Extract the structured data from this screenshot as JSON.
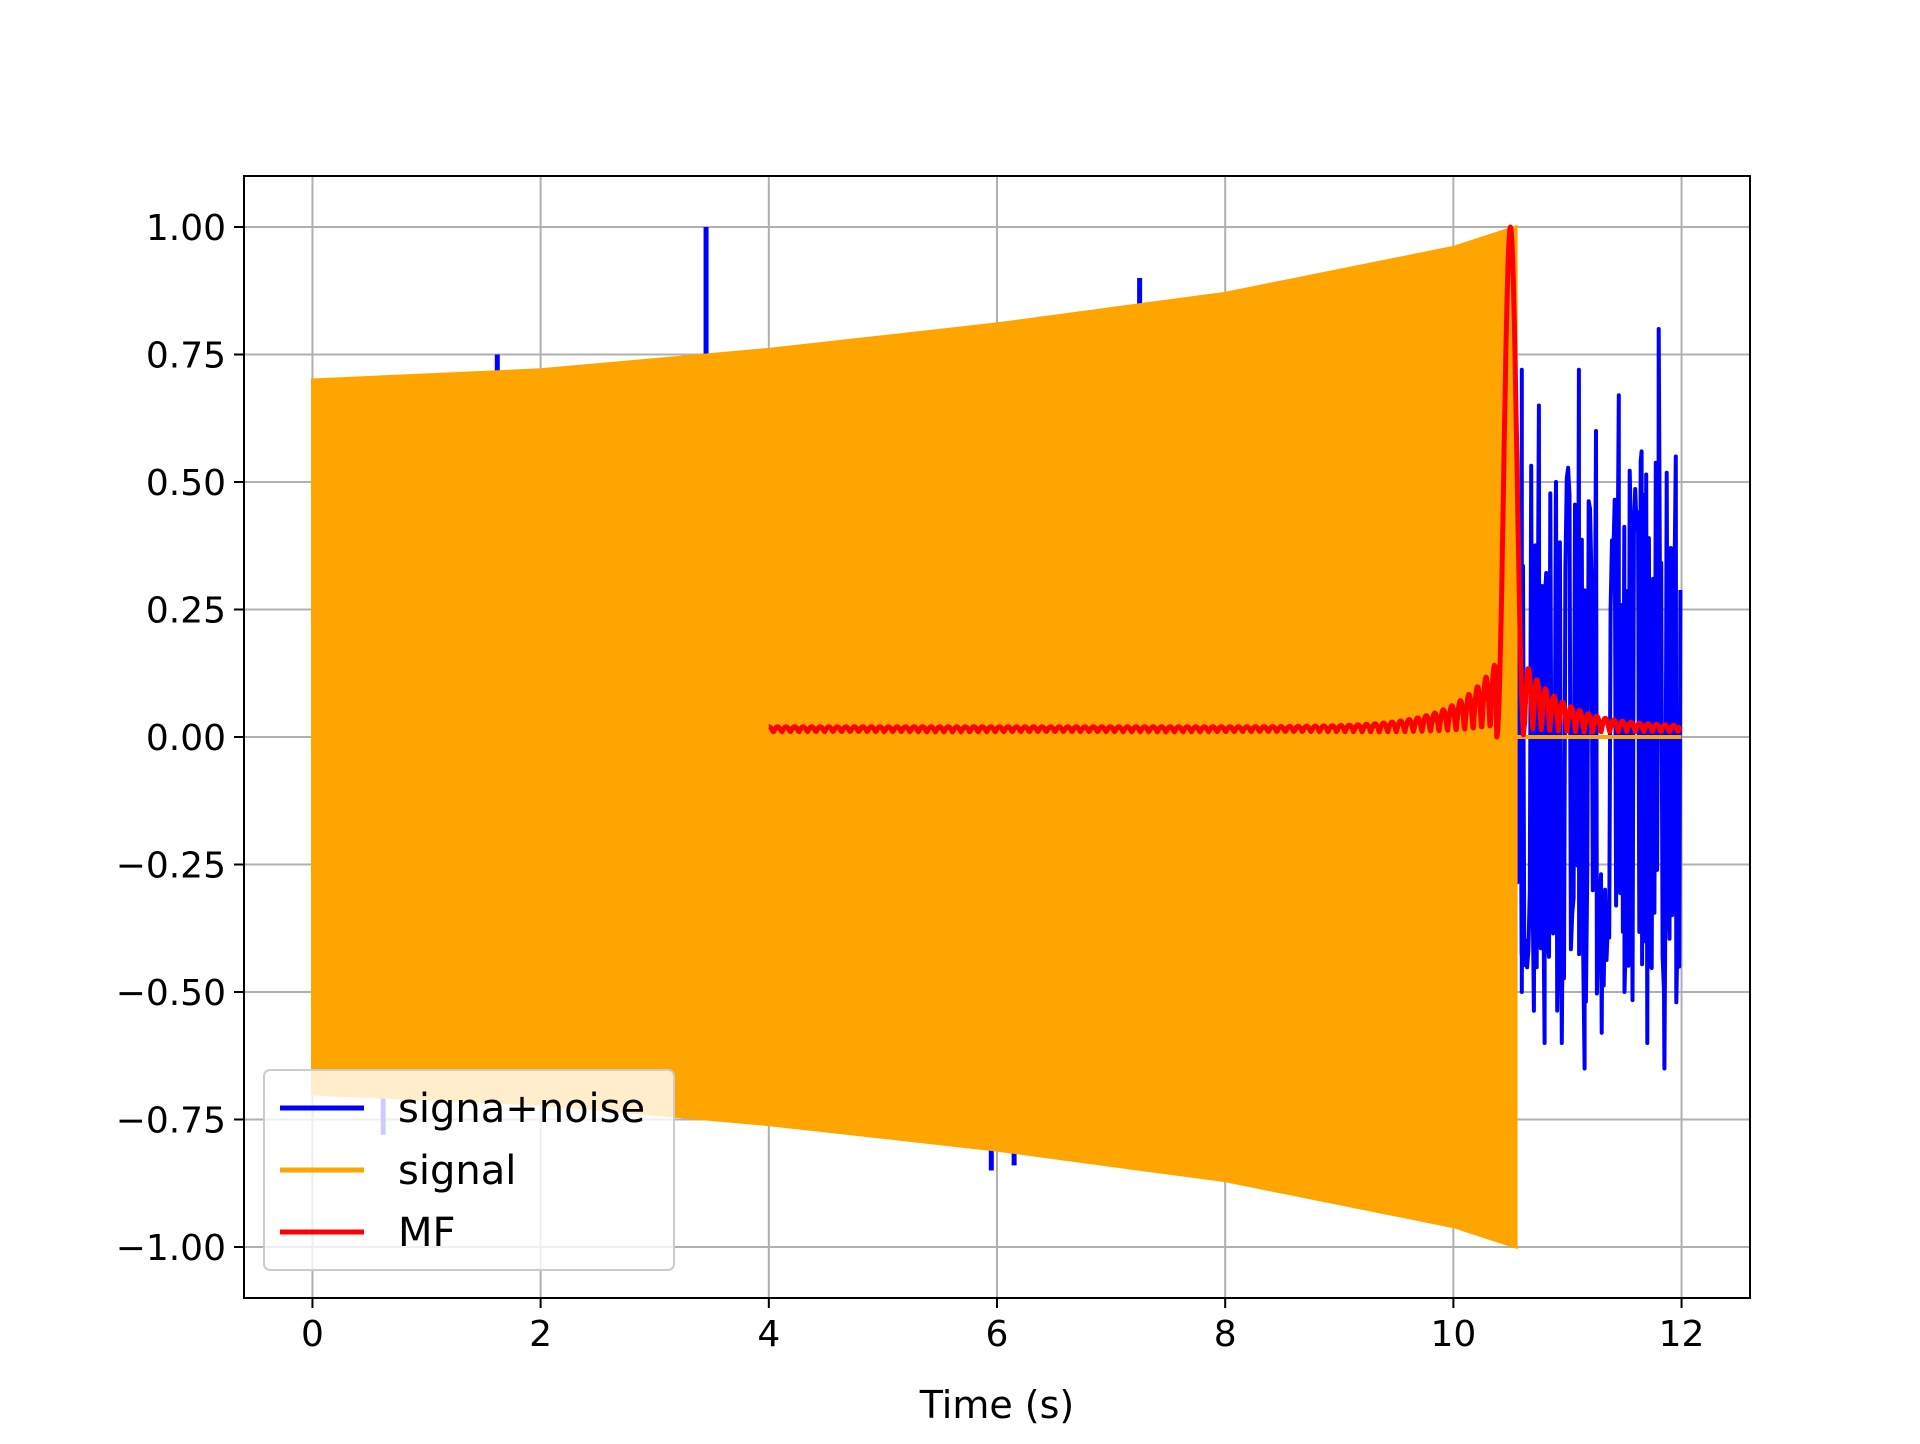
{
  "chart_data": {
    "type": "line",
    "xlabel": "Time (s)",
    "ylabel": "",
    "xlim": [
      -0.6,
      12.6
    ],
    "ylim": [
      -1.1,
      1.1
    ],
    "x_ticks": [
      0,
      2,
      4,
      6,
      8,
      10,
      12
    ],
    "x_tick_labels": [
      "0",
      "2",
      "4",
      "6",
      "8",
      "10",
      "12"
    ],
    "y_ticks": [
      1.0,
      0.75,
      0.5,
      0.25,
      0.0,
      -0.25,
      -0.5,
      -0.75,
      -1.0
    ],
    "y_tick_labels": [
      "1.00",
      "0.75",
      "0.50",
      "0.25",
      "0.00",
      "−0.25",
      "−0.50",
      "−0.75",
      "−1.00"
    ],
    "grid": true,
    "legend_position": "lower-left",
    "series": [
      {
        "name": "signa+noise",
        "color": "#0000ff",
        "description_points": {
          "time_range": [
            0,
            12
          ],
          "spikes": [
            {
              "x": 1.62,
              "y": 0.75
            },
            {
              "x": 3.45,
              "y": 1.0
            },
            {
              "x": 7.25,
              "y": 0.9
            },
            {
              "x": 5.95,
              "y": -0.85
            },
            {
              "x": 6.15,
              "y": -0.84
            },
            {
              "x": 0.62,
              "y": -0.78
            }
          ],
          "noise_after_signal": {
            "x_range": [
              10.55,
              12.0
            ],
            "positive_peaks": [
              {
                "x": 10.6,
                "y": 0.72
              },
              {
                "x": 10.75,
                "y": 0.65
              },
              {
                "x": 10.9,
                "y": 0.5
              },
              {
                "x": 11.1,
                "y": 0.72
              },
              {
                "x": 11.25,
                "y": 0.6
              },
              {
                "x": 11.45,
                "y": 0.67
              },
              {
                "x": 11.65,
                "y": 0.56
              },
              {
                "x": 11.8,
                "y": 0.8
              },
              {
                "x": 11.95,
                "y": 0.55
              }
            ],
            "negative_peaks": [
              {
                "x": 10.6,
                "y": -0.5
              },
              {
                "x": 10.8,
                "y": -0.6
              },
              {
                "x": 10.95,
                "y": -0.6
              },
              {
                "x": 11.15,
                "y": -0.65
              },
              {
                "x": 11.3,
                "y": -0.58
              },
              {
                "x": 11.5,
                "y": -0.5
              },
              {
                "x": 11.7,
                "y": -0.6
              },
              {
                "x": 11.85,
                "y": -0.65
              },
              {
                "x": 11.98,
                "y": -0.45
              }
            ]
          }
        }
      },
      {
        "name": "signal",
        "color": "#ffa500",
        "envelope": {
          "x_start": 0.0,
          "x_end": 10.55,
          "upper": [
            {
              "x": 0.0,
              "y": 0.7
            },
            {
              "x": 2.0,
              "y": 0.72
            },
            {
              "x": 4.0,
              "y": 0.76
            },
            {
              "x": 6.0,
              "y": 0.81
            },
            {
              "x": 8.0,
              "y": 0.87
            },
            {
              "x": 10.0,
              "y": 0.96
            },
            {
              "x": 10.55,
              "y": 1.0
            }
          ],
          "lower": [
            {
              "x": 0.0,
              "y": -0.7
            },
            {
              "x": 2.0,
              "y": -0.72
            },
            {
              "x": 4.0,
              "y": -0.76
            },
            {
              "x": 6.0,
              "y": -0.81
            },
            {
              "x": 8.0,
              "y": -0.87
            },
            {
              "x": 10.0,
              "y": -0.96
            },
            {
              "x": 10.55,
              "y": -1.0
            }
          ]
        },
        "after_end_value": 0.0
      },
      {
        "name": "MF",
        "color": "#ff0000",
        "x_range": [
          4.0,
          12.0
        ],
        "peak": {
          "x": 10.5,
          "y": 1.0
        },
        "baseline": 0.01
      }
    ]
  }
}
